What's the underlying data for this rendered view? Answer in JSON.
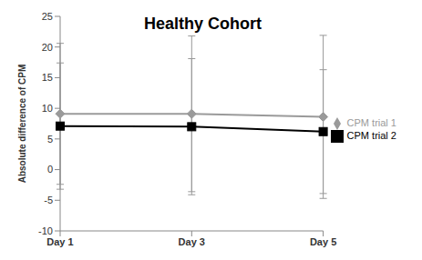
{
  "chart_data": {
    "type": "line",
    "title": "Healthy Cohort",
    "y_label": "Absolute difference of CPM",
    "categories": [
      "Day 1",
      "Day 3",
      "Day 5"
    ],
    "series": [
      {
        "name": "CPM trial 1",
        "color": "#9a9a9a",
        "marker": "diamond",
        "values": [
          9.1,
          9.1,
          8.6
        ],
        "errors": [
          11.5,
          12.7,
          13.3
        ]
      },
      {
        "name": "CPM trial 2",
        "color": "#000000",
        "marker": "square",
        "values": [
          7.1,
          7.0,
          6.2
        ],
        "errors": [
          10.3,
          11.1,
          10.1
        ]
      }
    ],
    "ylim": [
      -10,
      25
    ],
    "yticks": [
      -10,
      -5,
      0,
      5,
      10,
      15,
      20,
      25
    ],
    "grid": false,
    "legend": "right"
  }
}
